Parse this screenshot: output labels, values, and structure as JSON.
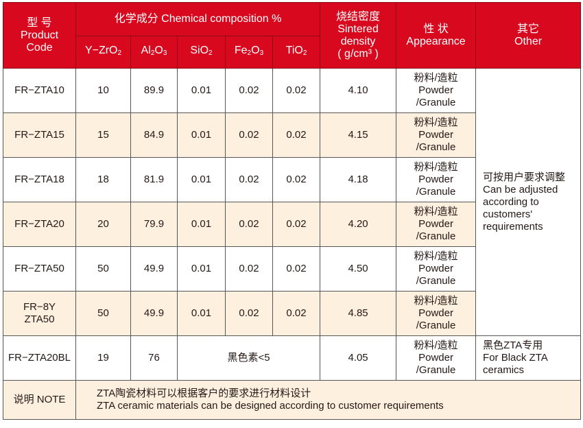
{
  "header": {
    "product_code": [
      "型 号",
      "Product",
      "Code"
    ],
    "composition": "化学成分 Chemical composition %",
    "components": [
      {
        "base": "Y−ZrO",
        "sub": "2",
        "tail": ""
      },
      {
        "base": "Al",
        "sub": "2",
        "tail": "O",
        "sub2": "3"
      },
      {
        "base": "SiO",
        "sub": "2",
        "tail": ""
      },
      {
        "base": "Fe",
        "sub": "2",
        "tail": "O",
        "sub2": "3"
      },
      {
        "base": "TiO",
        "sub": "2",
        "tail": ""
      }
    ],
    "density": [
      "烧结密度",
      "Sintered",
      "density",
      "( g/cm³ )"
    ],
    "appearance": [
      "性 状",
      "Appearance"
    ],
    "other": [
      "其它",
      "Other"
    ]
  },
  "rows": [
    {
      "code": [
        "FR−ZTA10"
      ],
      "zro2": "10",
      "al2o3": "89.9",
      "sio2": "0.01",
      "fe2o3": "0.02",
      "tio2": "0.02",
      "density": "4.10",
      "appearance": [
        "粉料/造粒",
        "Powder",
        "/Granule"
      ]
    },
    {
      "code": [
        "FR−ZTA15"
      ],
      "zro2": "15",
      "al2o3": "84.9",
      "sio2": "0.01",
      "fe2o3": "0.02",
      "tio2": "0.02",
      "density": "4.15",
      "appearance": [
        "粉料/造粒",
        "Powder",
        "/Granule"
      ]
    },
    {
      "code": [
        "FR−ZTA18"
      ],
      "zro2": "18",
      "al2o3": "81.9",
      "sio2": "0.01",
      "fe2o3": "0.02",
      "tio2": "0.02",
      "density": "4.18",
      "appearance": [
        "粉料/造粒",
        "Powder",
        "/Granule"
      ]
    },
    {
      "code": [
        "FR−ZTA20"
      ],
      "zro2": "20",
      "al2o3": "79.9",
      "sio2": "0.01",
      "fe2o3": "0.02",
      "tio2": "0.02",
      "density": "4.20",
      "appearance": [
        "粉料/造粒",
        "Powder",
        "/Granule"
      ]
    },
    {
      "code": [
        "FR−ZTA50"
      ],
      "zro2": "50",
      "al2o3": "49.9",
      "sio2": "0.01",
      "fe2o3": "0.02",
      "tio2": "0.02",
      "density": "4.50",
      "appearance": [
        "粉料/造粒",
        "Powder",
        "/Granule"
      ]
    },
    {
      "code": [
        "FR−8Y",
        "ZTA50"
      ],
      "zro2": "50",
      "al2o3": "49.9",
      "sio2": "0.01",
      "fe2o3": "0.02",
      "tio2": "0.02",
      "density": "4.85",
      "appearance": [
        "粉料/造粒",
        "Powder",
        "/Granule"
      ]
    }
  ],
  "other_merged": [
    "可按用户要求调整",
    "Can be adjusted",
    "according to",
    "customers'",
    "requirements"
  ],
  "black_row": {
    "code": "FR−ZTA20BL",
    "zro2": "19",
    "al2o3": "76",
    "pigment": "黑色素<5",
    "density": "4.05",
    "appearance": [
      "粉料/造粒",
      "Powder",
      "/Granule"
    ],
    "other": [
      "黑色ZTA专用",
      "For Black ZTA",
      "ceramics"
    ]
  },
  "note": {
    "label": "说明 NOTE",
    "lines": [
      "ZTA陶瓷材料可以根据客户的要求进行材料设计",
      "ZTA ceramic materials can be designed according to customer requirements"
    ]
  },
  "colors": {
    "header_bg": "#d8091f",
    "stripe_bg": "#fdf0df"
  }
}
